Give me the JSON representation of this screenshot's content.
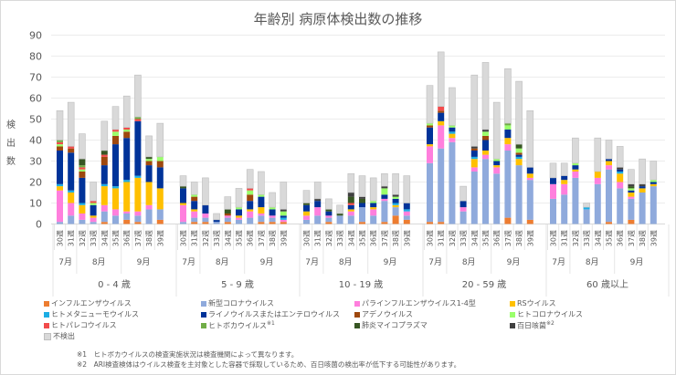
{
  "chart_data": {
    "type": "bar",
    "stacked": true,
    "title": "年齢別 病原体検出数の推移",
    "xlabel": "",
    "ylabel": "検出数",
    "ylim": [
      0,
      90
    ],
    "yticks": [
      0,
      10,
      20,
      30,
      40,
      50,
      60,
      70,
      80,
      90
    ],
    "grid": true,
    "legend_position": "bottom",
    "age_groups": [
      "0 - 4 歳",
      "5 - 9 歳",
      "10 - 19 歳",
      "20 - 59 歳",
      "60 歳以上"
    ],
    "weeks": [
      "30週",
      "31週",
      "32週",
      "33週",
      "34週",
      "35週",
      "36週",
      "37週",
      "38週",
      "39週"
    ],
    "months": [
      {
        "label": "7月",
        "span": 2
      },
      {
        "label": "8月",
        "span": 4
      },
      {
        "label": "9月",
        "span": 4
      }
    ],
    "series": [
      {
        "name": "インフルエンザウイルス",
        "color": "#ED7D31",
        "values": [
          0,
          0,
          0,
          0,
          1,
          0,
          2,
          1,
          0,
          2,
          0,
          1,
          1,
          0,
          1,
          0,
          0,
          1,
          1,
          1,
          0,
          0,
          1,
          0,
          0,
          1,
          0,
          1,
          4,
          2,
          1,
          1,
          0,
          0,
          0,
          0,
          0,
          3,
          0,
          2,
          0,
          0,
          0,
          0,
          0,
          1,
          0,
          2,
          0,
          0
        ]
      },
      {
        "name": "新型コロナウイルス",
        "color": "#8FAADC",
        "values": [
          1,
          4,
          2,
          1,
          5,
          4,
          3,
          3,
          7,
          5,
          1,
          2,
          2,
          1,
          2,
          2,
          3,
          3,
          2,
          0,
          2,
          4,
          2,
          4,
          4,
          7,
          4,
          10,
          4,
          2,
          28,
          35,
          39,
          6,
          25,
          31,
          24,
          32,
          28,
          19,
          12,
          14,
          22,
          7,
          19,
          25,
          17,
          10,
          15,
          18
        ]
      },
      {
        "name": "パラインフルエンザウイルス1-4型",
        "color": "#FF7FDD",
        "values": [
          15,
          6,
          3,
          2,
          3,
          3,
          1,
          2,
          2,
          0,
          8,
          3,
          2,
          0,
          1,
          1,
          3,
          1,
          1,
          1,
          2,
          4,
          1,
          0,
          2,
          0,
          3,
          1,
          0,
          2,
          8,
          11,
          2,
          2,
          2,
          2,
          3,
          3,
          0,
          1,
          7,
          5,
          3,
          0,
          3,
          2,
          3,
          1,
          0,
          0
        ]
      },
      {
        "name": "RSウイルス",
        "color": "#FFC000",
        "values": [
          2,
          5,
          4,
          1,
          9,
          10,
          14,
          16,
          11,
          10,
          1,
          1,
          0,
          0,
          0,
          1,
          1,
          3,
          0,
          0,
          2,
          0,
          0,
          0,
          1,
          0,
          1,
          0,
          1,
          0,
          1,
          2,
          2,
          0,
          4,
          2,
          1,
          3,
          3,
          2,
          0,
          2,
          1,
          0,
          3,
          2,
          4,
          2,
          2,
          1
        ]
      },
      {
        "name": "ヒトメタニューモウイルス",
        "color": "#1CADE4",
        "values": [
          1,
          1,
          1,
          0,
          1,
          1,
          1,
          1,
          0,
          0,
          0,
          0,
          0,
          0,
          0,
          0,
          0,
          0,
          0,
          1,
          0,
          0,
          0,
          0,
          0,
          0,
          0,
          0,
          1,
          1,
          0,
          0,
          1,
          0,
          1,
          0,
          0,
          0,
          1,
          0,
          0,
          0,
          0,
          1,
          0,
          0,
          1,
          0,
          0,
          0
        ]
      },
      {
        "name": "ライノウイルスまたはエンテロウイルス",
        "color": "#003399",
        "values": [
          16,
          18,
          12,
          5,
          9,
          20,
          20,
          26,
          8,
          10,
          7,
          4,
          4,
          1,
          0,
          3,
          4,
          5,
          3,
          1,
          3,
          3,
          2,
          0,
          2,
          2,
          2,
          2,
          2,
          3,
          8,
          4,
          2,
          3,
          3,
          5,
          2,
          4,
          1,
          3,
          3,
          2,
          2,
          0,
          0,
          1,
          1,
          1,
          1,
          1
        ]
      },
      {
        "name": "アデノウイルス",
        "color": "#9E480E",
        "values": [
          2,
          2,
          3,
          0,
          4,
          4,
          3,
          0,
          2,
          3,
          0,
          2,
          0,
          0,
          1,
          0,
          3,
          0,
          0,
          0,
          0,
          0,
          0,
          0,
          0,
          0,
          0,
          0,
          0,
          0,
          1,
          1,
          0,
          0,
          1,
          2,
          0,
          0,
          1,
          0,
          0,
          0,
          0,
          0,
          0,
          0,
          0,
          0,
          0,
          0
        ]
      },
      {
        "name": "ヒトコロナウイルス",
        "color": "#9AFF6B",
        "values": [
          1,
          0,
          1,
          1,
          0,
          2,
          1,
          0,
          1,
          2,
          0,
          1,
          0,
          0,
          0,
          1,
          2,
          1,
          1,
          2,
          0,
          0,
          0,
          0,
          0,
          0,
          1,
          3,
          1,
          0,
          1,
          0,
          1,
          0,
          0,
          2,
          1,
          2,
          2,
          0,
          0,
          0,
          1,
          0,
          0,
          0,
          0,
          1,
          0,
          1
        ]
      },
      {
        "name": "ヒトパレコウイルス",
        "color": "#F24B4B",
        "values": [
          1,
          1,
          1,
          1,
          1,
          1,
          1,
          1,
          0,
          0,
          0,
          0,
          0,
          0,
          0,
          0,
          1,
          0,
          0,
          0,
          0,
          0,
          0,
          0,
          1,
          0,
          0,
          0,
          0,
          0,
          0,
          2,
          0,
          0,
          0,
          0,
          0,
          0,
          0,
          0,
          0,
          0,
          0,
          0,
          0,
          0,
          0,
          0,
          0,
          0
        ]
      },
      {
        "name": "ヒトボカウイルス※1",
        "color": "#70AD47",
        "values": [
          1,
          0,
          1,
          0,
          0,
          0,
          0,
          1,
          0,
          0,
          0,
          0,
          0,
          0,
          0,
          0,
          0,
          0,
          0,
          0,
          0,
          0,
          0,
          0,
          0,
          0,
          0,
          0,
          0,
          0,
          0,
          0,
          0,
          0,
          0,
          0,
          0,
          1,
          0,
          0,
          0,
          0,
          0,
          0,
          0,
          0,
          0,
          0,
          0,
          0
        ]
      },
      {
        "name": "肺炎マイコプラズマ",
        "color": "#375623",
        "values": [
          0,
          0,
          3,
          0,
          2,
          0,
          0,
          0,
          1,
          0,
          1,
          0,
          0,
          0,
          2,
          0,
          0,
          0,
          0,
          0,
          1,
          0,
          1,
          1,
          3,
          2,
          0,
          0,
          0,
          0,
          0,
          0,
          0,
          0,
          0,
          0,
          0,
          0,
          2,
          0,
          0,
          0,
          0,
          0,
          0,
          0,
          0,
          1,
          0,
          0
        ]
      },
      {
        "name": "百日咳菌※2",
        "color": "#404040",
        "values": [
          0,
          0,
          0,
          0,
          0,
          0,
          0,
          0,
          0,
          0,
          0,
          0,
          0,
          0,
          0,
          0,
          0,
          0,
          0,
          1,
          0,
          1,
          0,
          0,
          2,
          1,
          0,
          1,
          1,
          0,
          0,
          0,
          0,
          0,
          1,
          1,
          0,
          0,
          0,
          0,
          0,
          0,
          0,
          0,
          0,
          0,
          1,
          1,
          1,
          0
        ]
      },
      {
        "name": "不検出",
        "color": "#D9D9D9",
        "values": [
          14,
          21,
          12,
          9,
          14,
          11,
          15,
          20,
          10,
          16,
          5,
          6,
          13,
          3,
          6,
          9,
          9,
          11,
          7,
          13,
          6,
          8,
          5,
          4,
          9,
          10,
          11,
          6,
          10,
          13,
          18,
          26,
          18,
          7,
          34,
          32,
          27,
          26,
          30,
          27,
          7,
          6,
          12,
          2,
          16,
          9,
          10,
          7,
          12,
          9
        ]
      }
    ]
  },
  "legend_rows": [
    [
      "インフルエンザウイルス",
      "新型コロナウイルス",
      "パラインフルエンザウイルス1-4型",
      "RSウイルス"
    ],
    [
      "ヒトメタニューモウイルス",
      "ライノウイルスまたはエンテロウイルス",
      "アデノウイルス",
      "ヒトコロナウイルス"
    ],
    [
      "ヒトパレコウイルス",
      "ヒトボカウイルス",
      "肺炎マイコプラズマ",
      "百日咳菌"
    ],
    [
      "不検出"
    ]
  ],
  "legend_superscripts": {
    "ヒトボカウイルス": "※1",
    "百日咳菌": "※2"
  },
  "notes": [
    {
      "mark": "※1",
      "text": "ヒトボカウイルスの検査実施状況は検査機関によって異なります。"
    },
    {
      "mark": "※2",
      "text": "ARI検査検体はウイルス検査を主対象とした容器で採取しているため、百日咳菌の検出率が低下する可能性があります。"
    }
  ]
}
